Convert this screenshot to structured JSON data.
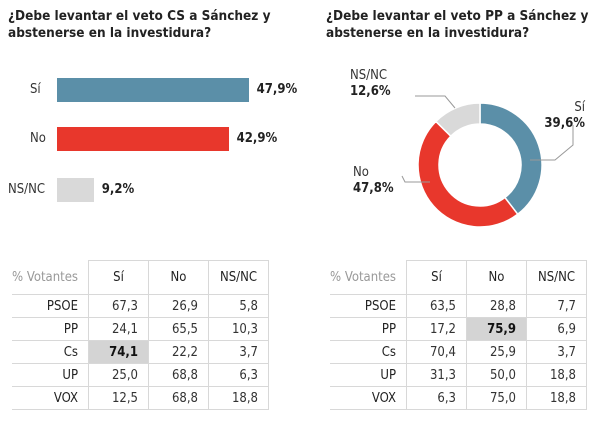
{
  "chart_data": [
    {
      "type": "bar",
      "title": "¿Debe levantar el veto CS a Sánchez y abstenerse en la investidura?",
      "categories": [
        "Sí",
        "No",
        "NS/NC"
      ],
      "values": [
        47.9,
        42.9,
        9.2
      ],
      "labels": [
        "47,9%",
        "42,9%",
        "9,2%"
      ],
      "colors": [
        "#5b8fa8",
        "#e8372c",
        "#d9d9d9"
      ]
    },
    {
      "type": "pie",
      "variant": "donut",
      "title": "¿Debe levantar el veto PP a Sánchez y abstenerse en la investidura?",
      "categories": [
        "Sí",
        "No",
        "NS/NC"
      ],
      "values": [
        39.6,
        47.8,
        12.6
      ],
      "labels": [
        "39,6%",
        "47,8%",
        "12,6%"
      ],
      "colors": [
        "#5b8fa8",
        "#e8372c",
        "#d9d9d9"
      ]
    },
    {
      "type": "table",
      "corner": "% Votantes",
      "columns": [
        "Sí",
        "No",
        "NS/NC"
      ],
      "rows": [
        {
          "party": "PSOE",
          "values": [
            "67,3",
            "26,9",
            "5,8"
          ]
        },
        {
          "party": "PP",
          "values": [
            "24,1",
            "65,5",
            "10,3"
          ]
        },
        {
          "party": "Cs",
          "values": [
            "74,1",
            "22,2",
            "3,7"
          ],
          "highlight": 0
        },
        {
          "party": "UP",
          "values": [
            "25,0",
            "68,8",
            "6,3"
          ]
        },
        {
          "party": "VOX",
          "values": [
            "12,5",
            "68,8",
            "18,8"
          ]
        }
      ]
    },
    {
      "type": "table",
      "corner": "% Votantes",
      "columns": [
        "Sí",
        "No",
        "NS/NC"
      ],
      "rows": [
        {
          "party": "PSOE",
          "values": [
            "63,5",
            "28,8",
            "7,7"
          ]
        },
        {
          "party": "PP",
          "values": [
            "17,2",
            "75,9",
            "6,9"
          ],
          "highlight": 1
        },
        {
          "party": "Cs",
          "values": [
            "70,4",
            "25,9",
            "3,7"
          ]
        },
        {
          "party": "UP",
          "values": [
            "31,3",
            "50,0",
            "18,8"
          ]
        },
        {
          "party": "VOX",
          "values": [
            "6,3",
            "75,0",
            "18,8"
          ]
        }
      ]
    }
  ]
}
